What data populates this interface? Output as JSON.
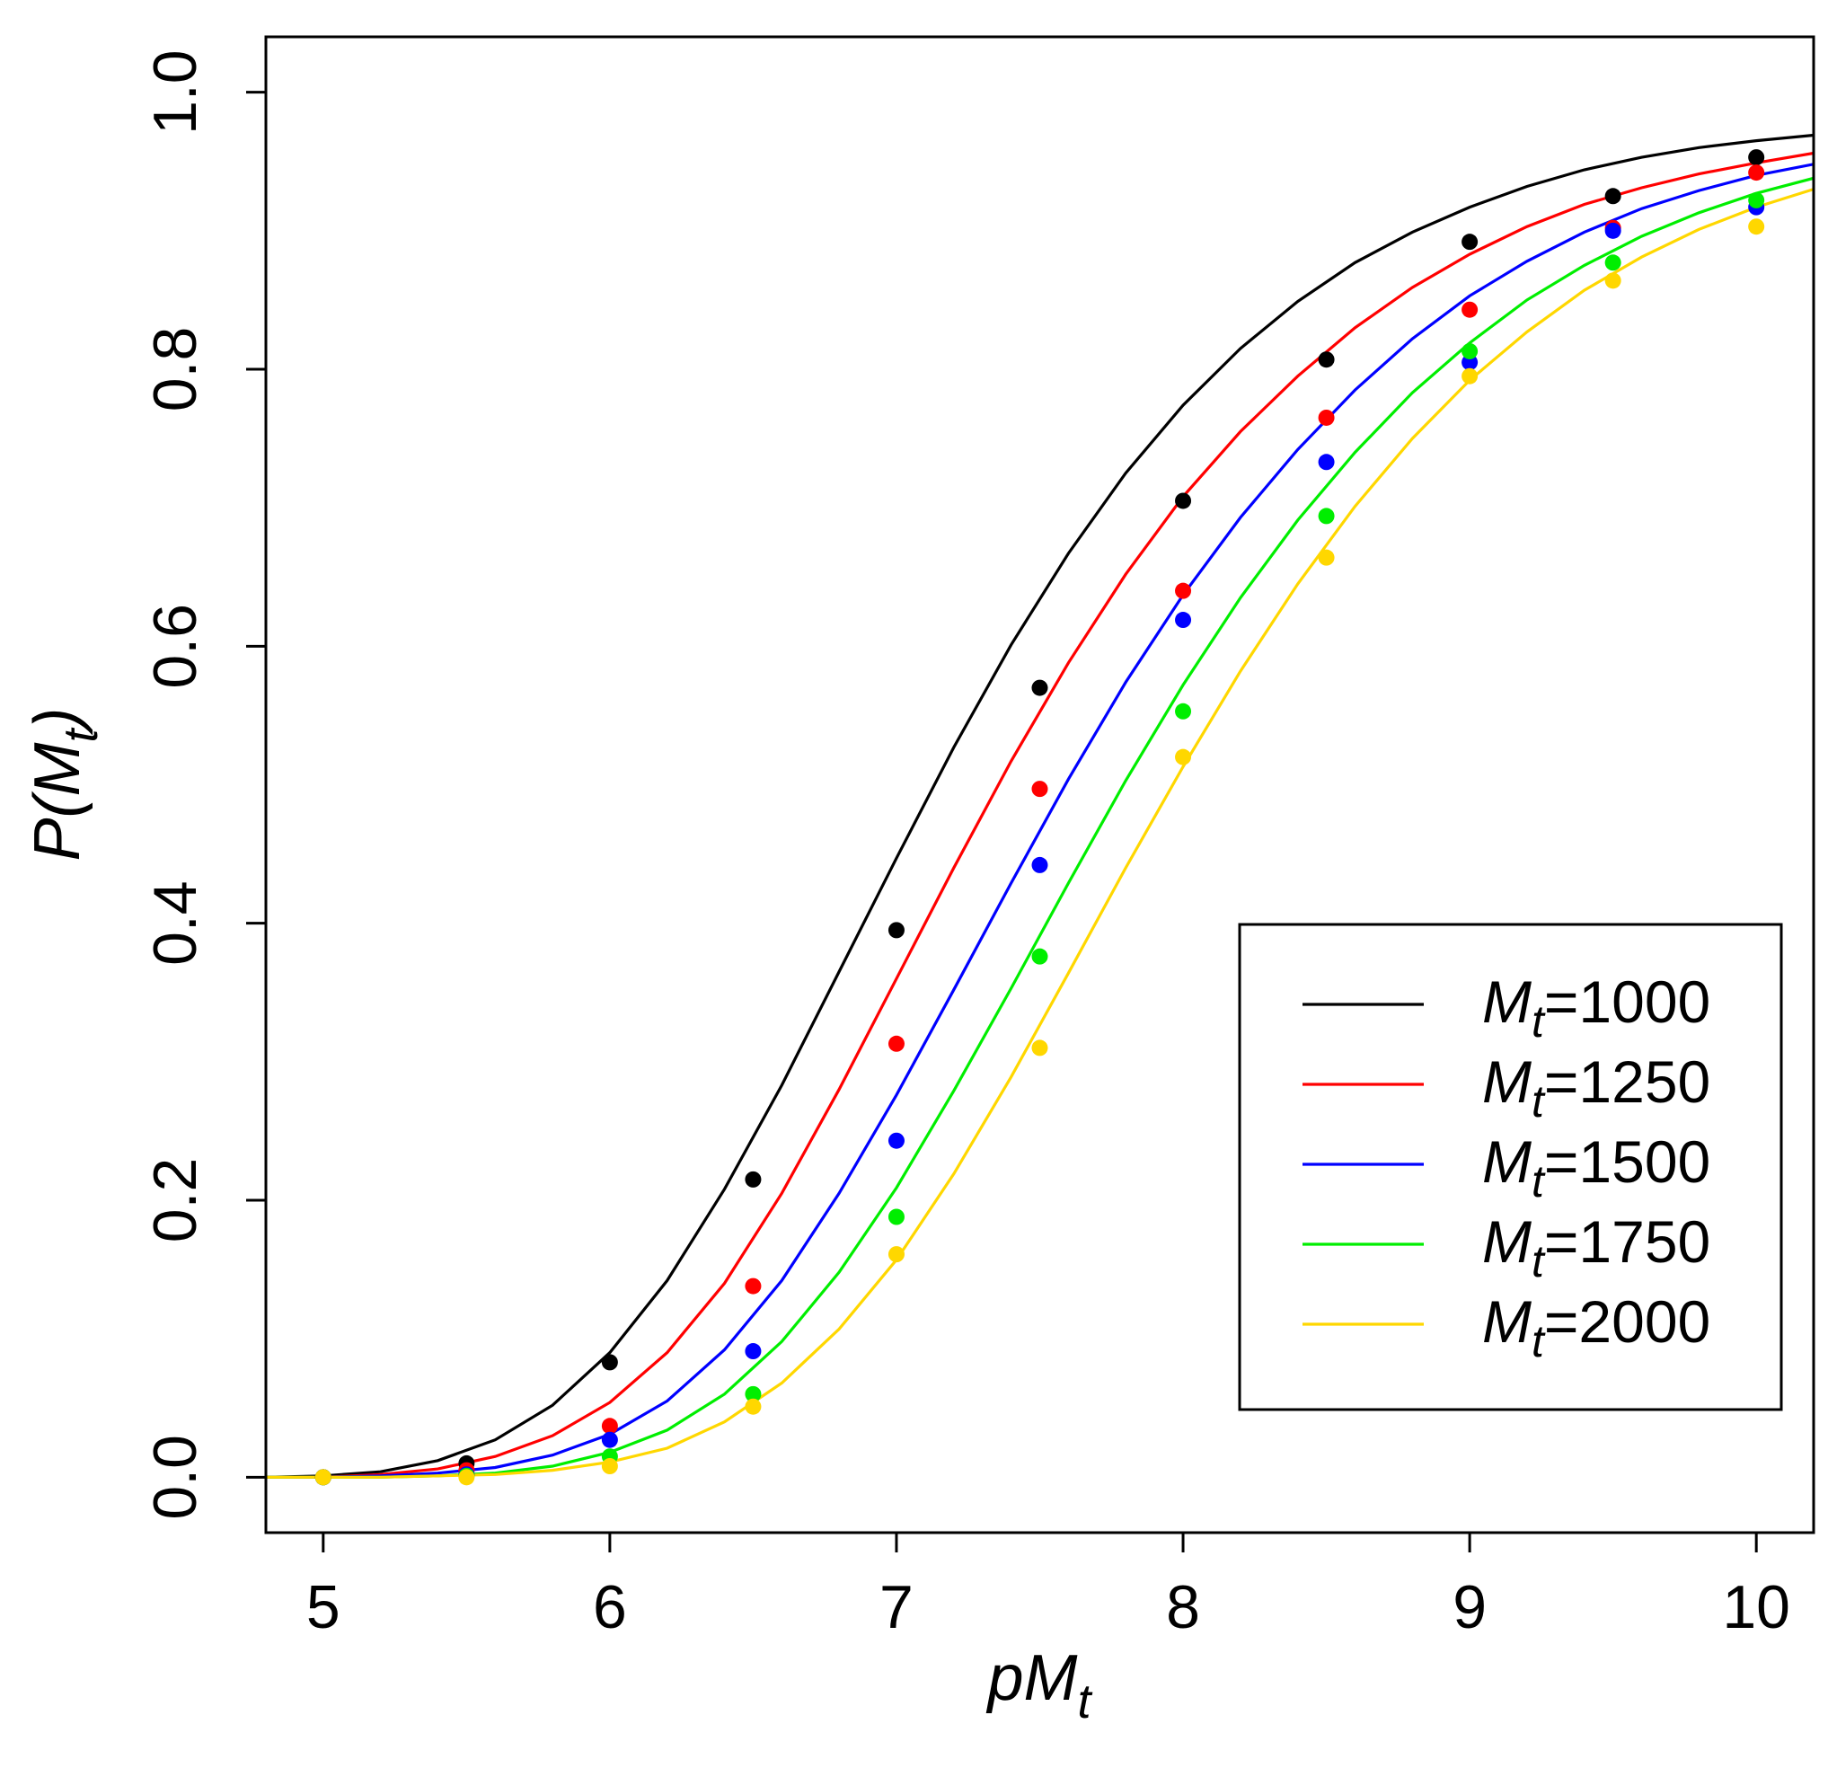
{
  "chart_data": {
    "type": "line",
    "title": "",
    "xlabel": {
      "main": "pM",
      "sub": "t"
    },
    "ylabel": {
      "main": "P(M",
      "sub": "t",
      "close": ")"
    },
    "xlim": [
      4.8,
      10.2
    ],
    "ylim": [
      -0.04,
      1.04
    ],
    "x_ticks": [
      5,
      6,
      7,
      8,
      9,
      10
    ],
    "x_tick_labels": [
      "5",
      "6",
      "7",
      "8",
      "9",
      "10"
    ],
    "y_ticks": [
      0.0,
      0.2,
      0.4,
      0.6,
      0.8,
      1.0
    ],
    "y_tick_labels": [
      "0.0",
      "0.2",
      "0.4",
      "0.6",
      "0.8",
      "1.0"
    ],
    "grid": false,
    "legend_position": "right-middle",
    "points_x": [
      5,
      5.5,
      6,
      6.5,
      7,
      7.5,
      8,
      8.5,
      9,
      9.5,
      10
    ],
    "curve_x": [
      4.8,
      5.0,
      5.2,
      5.4,
      5.6,
      5.8,
      6.0,
      6.2,
      6.4,
      6.6,
      6.8,
      7.0,
      7.2,
      7.4,
      7.6,
      7.8,
      8.0,
      8.2,
      8.4,
      8.6,
      8.8,
      9.0,
      9.2,
      9.4,
      9.6,
      9.8,
      10.0,
      10.2
    ],
    "series": [
      {
        "name": "Mt=1000",
        "label_main": "M",
        "label_sub": "t",
        "label_value": "=1000",
        "color": "#000000",
        "points": [
          0.0,
          0.01,
          0.083,
          0.215,
          0.395,
          0.57,
          0.705,
          0.807,
          0.892,
          0.925,
          0.953
        ],
        "curve": [
          0.0,
          0.001,
          0.004,
          0.012,
          0.027,
          0.052,
          0.09,
          0.142,
          0.208,
          0.283,
          0.365,
          0.447,
          0.527,
          0.601,
          0.667,
          0.725,
          0.774,
          0.815,
          0.849,
          0.877,
          0.899,
          0.917,
          0.932,
          0.944,
          0.953,
          0.96,
          0.965,
          0.969
        ]
      },
      {
        "name": "Mt=1250",
        "label_main": "M",
        "label_sub": "t",
        "label_value": "=1250",
        "color": "#ff0000",
        "points": [
          0.0,
          0.005,
          0.037,
          0.138,
          0.313,
          0.497,
          0.64,
          0.765,
          0.843,
          0.902,
          0.942
        ],
        "curve": [
          0.0,
          0.0,
          0.002,
          0.006,
          0.015,
          0.03,
          0.054,
          0.09,
          0.14,
          0.205,
          0.28,
          0.36,
          0.44,
          0.517,
          0.588,
          0.652,
          0.708,
          0.755,
          0.795,
          0.83,
          0.859,
          0.883,
          0.903,
          0.919,
          0.931,
          0.941,
          0.949,
          0.956
        ]
      },
      {
        "name": "Mt=1500",
        "label_main": "M",
        "label_sub": "t",
        "label_value": "=1500",
        "color": "#0000ff",
        "points": [
          0.0,
          0.002,
          0.027,
          0.091,
          0.243,
          0.442,
          0.619,
          0.733,
          0.805,
          0.9,
          0.917
        ],
        "curve": [
          0.0,
          0.0,
          0.001,
          0.003,
          0.007,
          0.016,
          0.031,
          0.055,
          0.092,
          0.142,
          0.205,
          0.276,
          0.352,
          0.429,
          0.504,
          0.574,
          0.637,
          0.693,
          0.742,
          0.785,
          0.822,
          0.853,
          0.878,
          0.899,
          0.916,
          0.929,
          0.94,
          0.948
        ]
      },
      {
        "name": "Mt=1750",
        "label_main": "M",
        "label_sub": "t",
        "label_value": "=1750",
        "color": "#00ee00",
        "points": [
          0.0,
          0.001,
          0.015,
          0.06,
          0.188,
          0.376,
          0.553,
          0.694,
          0.813,
          0.877,
          0.922
        ],
        "curve": [
          0.0,
          0.0,
          0.0,
          0.001,
          0.003,
          0.008,
          0.018,
          0.034,
          0.06,
          0.098,
          0.148,
          0.209,
          0.279,
          0.353,
          0.429,
          0.503,
          0.572,
          0.635,
          0.691,
          0.74,
          0.783,
          0.819,
          0.85,
          0.875,
          0.896,
          0.913,
          0.927,
          0.938
        ]
      },
      {
        "name": "Mt=2000",
        "label_main": "M",
        "label_sub": "t",
        "label_value": "=2000",
        "color": "#ffd700",
        "points": [
          0.0,
          0.0,
          0.008,
          0.051,
          0.161,
          0.31,
          0.52,
          0.664,
          0.795,
          0.864,
          0.903
        ],
        "curve": [
          0.0,
          0.0,
          0.0,
          0.001,
          0.002,
          0.005,
          0.011,
          0.021,
          0.04,
          0.068,
          0.107,
          0.157,
          0.219,
          0.289,
          0.364,
          0.44,
          0.513,
          0.582,
          0.645,
          0.701,
          0.75,
          0.792,
          0.827,
          0.857,
          0.881,
          0.901,
          0.917,
          0.93
        ]
      }
    ]
  }
}
